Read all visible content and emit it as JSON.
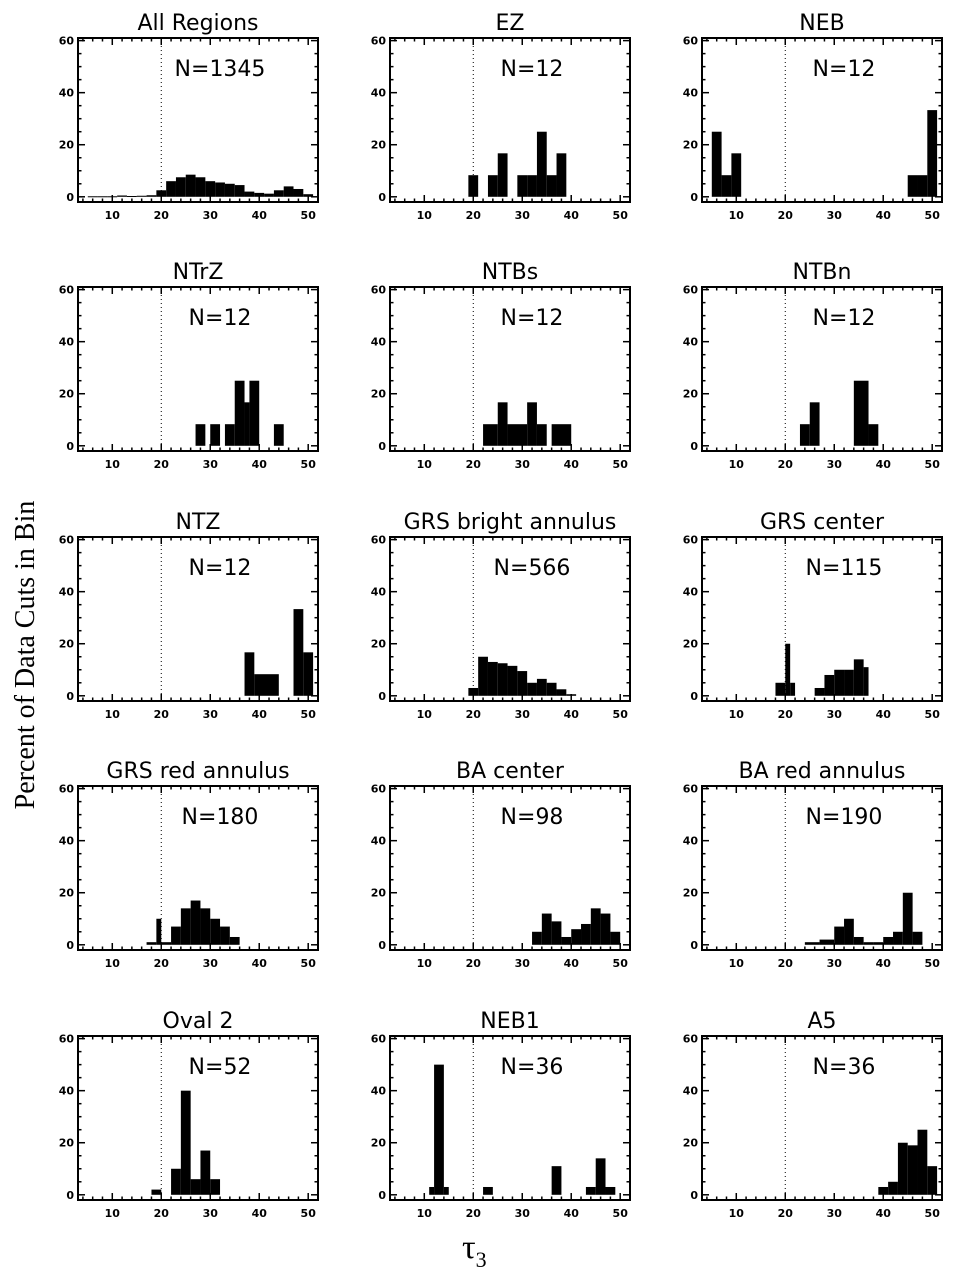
{
  "figure": {
    "ylabel": "Percent of Data Cuts in Bin",
    "xlabel": "τ",
    "xlabel_sub": "3"
  },
  "chart_data": [
    {
      "type": "bar",
      "title": "All Regions",
      "annotation": "N=1345",
      "xlim": [
        3,
        52
      ],
      "ylim": [
        -2,
        61
      ],
      "xticks": [
        10,
        20,
        30,
        40,
        50
      ],
      "yticks": [
        0,
        20,
        40,
        60
      ],
      "reference_x": 20,
      "bins": [
        [
          5,
          7,
          0.2
        ],
        [
          7,
          9,
          0.2
        ],
        [
          9,
          11,
          0.2
        ],
        [
          11,
          13,
          0.5
        ],
        [
          13,
          15,
          0.3
        ],
        [
          15,
          17,
          0.4
        ],
        [
          17,
          19,
          0.6
        ],
        [
          19,
          21,
          2.5
        ],
        [
          21,
          23,
          6
        ],
        [
          23,
          25,
          7.5
        ],
        [
          25,
          27,
          8.5
        ],
        [
          27,
          29,
          7.5
        ],
        [
          29,
          31,
          6
        ],
        [
          31,
          33,
          5.5
        ],
        [
          33,
          35,
          5
        ],
        [
          35,
          37,
          4.5
        ],
        [
          37,
          39,
          2
        ],
        [
          39,
          41,
          1.5
        ],
        [
          41,
          43,
          1.2
        ],
        [
          43,
          45,
          2.5
        ],
        [
          45,
          47,
          4
        ],
        [
          47,
          49,
          3
        ],
        [
          49,
          51,
          1
        ]
      ]
    },
    {
      "type": "bar",
      "title": "EZ",
      "annotation": "N=12",
      "xlim": [
        3,
        52
      ],
      "ylim": [
        -2,
        61
      ],
      "xticks": [
        10,
        20,
        30,
        40,
        50
      ],
      "yticks": [
        0,
        20,
        40,
        60
      ],
      "reference_x": 20,
      "bins": [
        [
          19,
          21,
          8.3
        ],
        [
          23,
          25,
          8.3
        ],
        [
          25,
          27,
          16.7
        ],
        [
          29,
          31,
          8.3
        ],
        [
          31,
          33,
          8.3
        ],
        [
          33,
          35,
          25
        ],
        [
          35,
          37,
          8.3
        ],
        [
          37,
          39,
          16.7
        ]
      ]
    },
    {
      "type": "bar",
      "title": "NEB",
      "annotation": "N=12",
      "xlim": [
        3,
        52
      ],
      "ylim": [
        -2,
        61
      ],
      "xticks": [
        10,
        20,
        30,
        40,
        50
      ],
      "yticks": [
        0,
        20,
        40,
        60
      ],
      "reference_x": 20,
      "bins": [
        [
          5,
          7,
          25
        ],
        [
          7,
          9,
          8.3
        ],
        [
          9,
          11,
          16.7
        ],
        [
          45,
          47,
          8.3
        ],
        [
          47,
          49,
          8.3
        ],
        [
          49,
          51,
          33.3
        ]
      ]
    },
    {
      "type": "bar",
      "title": "NTrZ",
      "annotation": "N=12",
      "xlim": [
        3,
        52
      ],
      "ylim": [
        -2,
        61
      ],
      "xticks": [
        10,
        20,
        30,
        40,
        50
      ],
      "yticks": [
        0,
        20,
        40,
        60
      ],
      "reference_x": 20,
      "bins": [
        [
          27,
          29,
          8.3
        ],
        [
          30,
          32,
          8.3
        ],
        [
          33,
          35,
          8.3
        ],
        [
          35,
          37,
          25
        ],
        [
          37,
          38,
          16.7
        ],
        [
          38,
          40,
          25
        ],
        [
          43,
          45,
          8.3
        ]
      ]
    },
    {
      "type": "bar",
      "title": "NTBs",
      "annotation": "N=12",
      "xlim": [
        3,
        52
      ],
      "ylim": [
        -2,
        61
      ],
      "xticks": [
        10,
        20,
        30,
        40,
        50
      ],
      "yticks": [
        0,
        20,
        40,
        60
      ],
      "reference_x": 20,
      "bins": [
        [
          22,
          25,
          8.3
        ],
        [
          25,
          27,
          16.7
        ],
        [
          27,
          31,
          8.3
        ],
        [
          31,
          33,
          16.7
        ],
        [
          33,
          35,
          8.3
        ],
        [
          36,
          40,
          8.3
        ]
      ]
    },
    {
      "type": "bar",
      "title": "NTBn",
      "annotation": "N=12",
      "xlim": [
        3,
        52
      ],
      "ylim": [
        -2,
        61
      ],
      "xticks": [
        10,
        20,
        30,
        40,
        50
      ],
      "yticks": [
        0,
        20,
        40,
        60
      ],
      "reference_x": 20,
      "bins": [
        [
          23,
          25,
          8.3
        ],
        [
          25,
          27,
          16.7
        ],
        [
          34,
          37,
          25
        ],
        [
          37,
          39,
          8.3
        ]
      ]
    },
    {
      "type": "bar",
      "title": "NTZ",
      "annotation": "N=12",
      "xlim": [
        3,
        52
      ],
      "ylim": [
        -2,
        61
      ],
      "xticks": [
        10,
        20,
        30,
        40,
        50
      ],
      "yticks": [
        0,
        20,
        40,
        60
      ],
      "reference_x": 20,
      "bins": [
        [
          37,
          39,
          16.7
        ],
        [
          39,
          44,
          8.3
        ],
        [
          47,
          49,
          33.3
        ],
        [
          49,
          51,
          16.7
        ]
      ]
    },
    {
      "type": "bar",
      "title": "GRS bright annulus",
      "annotation": "N=566",
      "xlim": [
        3,
        52
      ],
      "ylim": [
        -2,
        61
      ],
      "xticks": [
        10,
        20,
        30,
        40,
        50
      ],
      "yticks": [
        0,
        20,
        40,
        60
      ],
      "reference_x": 20,
      "bins": [
        [
          19,
          21,
          3
        ],
        [
          21,
          23,
          15
        ],
        [
          23,
          25,
          13
        ],
        [
          25,
          27,
          12.5
        ],
        [
          27,
          29,
          11.5
        ],
        [
          29,
          31,
          9.5
        ],
        [
          31,
          33,
          5
        ],
        [
          33,
          35,
          6.5
        ],
        [
          35,
          37,
          5
        ],
        [
          37,
          39,
          2.5
        ],
        [
          39,
          41,
          0.6
        ]
      ]
    },
    {
      "type": "bar",
      "title": "GRS center",
      "annotation": "N=115",
      "xlim": [
        3,
        52
      ],
      "ylim": [
        -2,
        61
      ],
      "xticks": [
        10,
        20,
        30,
        40,
        50
      ],
      "yticks": [
        0,
        20,
        40,
        60
      ],
      "reference_x": 20,
      "bins": [
        [
          18,
          20,
          5
        ],
        [
          20,
          21,
          20
        ],
        [
          21,
          22,
          5
        ],
        [
          26,
          28,
          3
        ],
        [
          28,
          30,
          8
        ],
        [
          30,
          32,
          10
        ],
        [
          32,
          34,
          10
        ],
        [
          34,
          36,
          14
        ],
        [
          36,
          37,
          11
        ]
      ]
    },
    {
      "type": "bar",
      "title": "GRS red annulus",
      "annotation": "N=180",
      "xlim": [
        3,
        52
      ],
      "ylim": [
        -2,
        61
      ],
      "xticks": [
        10,
        20,
        30,
        40,
        50
      ],
      "yticks": [
        0,
        20,
        40,
        60
      ],
      "reference_x": 20,
      "bins": [
        [
          17,
          19,
          1
        ],
        [
          19,
          20,
          10
        ],
        [
          20,
          22,
          1
        ],
        [
          22,
          24,
          7
        ],
        [
          24,
          26,
          14
        ],
        [
          26,
          28,
          17
        ],
        [
          28,
          30,
          14
        ],
        [
          30,
          32,
          10
        ],
        [
          32,
          34,
          7
        ],
        [
          34,
          36,
          3
        ]
      ]
    },
    {
      "type": "bar",
      "title": "BA center",
      "annotation": "N=98",
      "xlim": [
        3,
        52
      ],
      "ylim": [
        -2,
        61
      ],
      "xticks": [
        10,
        20,
        30,
        40,
        50
      ],
      "yticks": [
        0,
        20,
        40,
        60
      ],
      "reference_x": 20,
      "bins": [
        [
          32,
          34,
          5
        ],
        [
          34,
          36,
          12
        ],
        [
          36,
          38,
          9
        ],
        [
          38,
          40,
          3
        ],
        [
          40,
          42,
          6
        ],
        [
          42,
          44,
          8
        ],
        [
          44,
          46,
          14
        ],
        [
          46,
          48,
          12
        ],
        [
          48,
          50,
          5
        ]
      ]
    },
    {
      "type": "bar",
      "title": "BA red annulus",
      "annotation": "N=190",
      "xlim": [
        3,
        52
      ],
      "ylim": [
        -2,
        61
      ],
      "xticks": [
        10,
        20,
        30,
        40,
        50
      ],
      "yticks": [
        0,
        20,
        40,
        60
      ],
      "reference_x": 20,
      "bins": [
        [
          24,
          27,
          1
        ],
        [
          27,
          30,
          2
        ],
        [
          30,
          32,
          7
        ],
        [
          32,
          34,
          10
        ],
        [
          34,
          36,
          3
        ],
        [
          36,
          38,
          1
        ],
        [
          38,
          40,
          1
        ],
        [
          40,
          42,
          3
        ],
        [
          42,
          44,
          5
        ],
        [
          44,
          46,
          20
        ],
        [
          46,
          48,
          5
        ]
      ]
    },
    {
      "type": "bar",
      "title": "Oval 2",
      "annotation": "N=52",
      "xlim": [
        3,
        52
      ],
      "ylim": [
        -2,
        61
      ],
      "xticks": [
        10,
        20,
        30,
        40,
        50
      ],
      "yticks": [
        0,
        20,
        40,
        60
      ],
      "reference_x": 20,
      "bins": [
        [
          18,
          20,
          2
        ],
        [
          22,
          24,
          10
        ],
        [
          24,
          26,
          40
        ],
        [
          26,
          28,
          6
        ],
        [
          28,
          30,
          17
        ],
        [
          30,
          32,
          6
        ]
      ]
    },
    {
      "type": "bar",
      "title": "NEB1",
      "annotation": "N=36",
      "xlim": [
        3,
        52
      ],
      "ylim": [
        -2,
        61
      ],
      "xticks": [
        10,
        20,
        30,
        40,
        50
      ],
      "yticks": [
        0,
        20,
        40,
        60
      ],
      "reference_x": 20,
      "bins": [
        [
          11,
          12,
          3
        ],
        [
          12,
          14,
          50
        ],
        [
          14,
          15,
          3
        ],
        [
          22,
          24,
          3
        ],
        [
          36,
          38,
          11
        ],
        [
          43,
          45,
          3
        ],
        [
          45,
          47,
          14
        ],
        [
          47,
          49,
          3
        ]
      ]
    },
    {
      "type": "bar",
      "title": "A5",
      "annotation": "N=36",
      "xlim": [
        3,
        52
      ],
      "ylim": [
        -2,
        61
      ],
      "xticks": [
        10,
        20,
        30,
        40,
        50
      ],
      "yticks": [
        0,
        20,
        40,
        60
      ],
      "reference_x": 20,
      "bins": [
        [
          39,
          41,
          3
        ],
        [
          41,
          43,
          5
        ],
        [
          43,
          45,
          20
        ],
        [
          45,
          47,
          19
        ],
        [
          47,
          49,
          25
        ],
        [
          49,
          51,
          11
        ]
      ]
    }
  ]
}
